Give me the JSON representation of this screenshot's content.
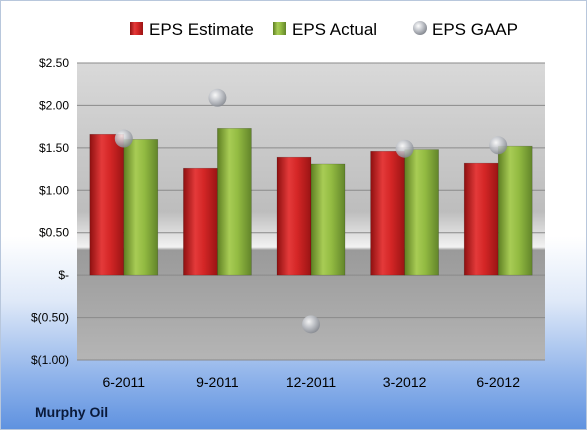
{
  "company": "Murphy Oil",
  "chart_data": {
    "type": "bar",
    "title": "",
    "xlabel": "",
    "ylabel": "",
    "categories": [
      "6-2011",
      "9-2011",
      "12-2011",
      "3-2012",
      "6-2012"
    ],
    "series": [
      {
        "name": "EPS Estimate",
        "type": "bar",
        "color": "#cc2222",
        "values": [
          1.66,
          1.26,
          1.39,
          1.46,
          1.32
        ]
      },
      {
        "name": "EPS Actual",
        "type": "bar",
        "color": "#8db53c",
        "values": [
          1.6,
          1.73,
          1.31,
          1.48,
          1.52
        ]
      },
      {
        "name": "EPS GAAP",
        "type": "scatter",
        "color": "#b8bcc4",
        "values": [
          1.61,
          2.09,
          -0.58,
          1.49,
          1.53
        ]
      }
    ],
    "yticks": [
      {
        "value": 2.5,
        "label": "$2.50"
      },
      {
        "value": 2.0,
        "label": "$2.00"
      },
      {
        "value": 1.5,
        "label": "$1.50"
      },
      {
        "value": 1.0,
        "label": "$1.00"
      },
      {
        "value": 0.5,
        "label": "$0.50"
      },
      {
        "value": 0.0,
        "label": "$-"
      },
      {
        "value": -0.5,
        "label": "$(0.50)"
      },
      {
        "value": -1.0,
        "label": "$(1.00)"
      }
    ],
    "ylim": [
      -1.0,
      2.5
    ],
    "grid": true,
    "legend_position": "top"
  }
}
